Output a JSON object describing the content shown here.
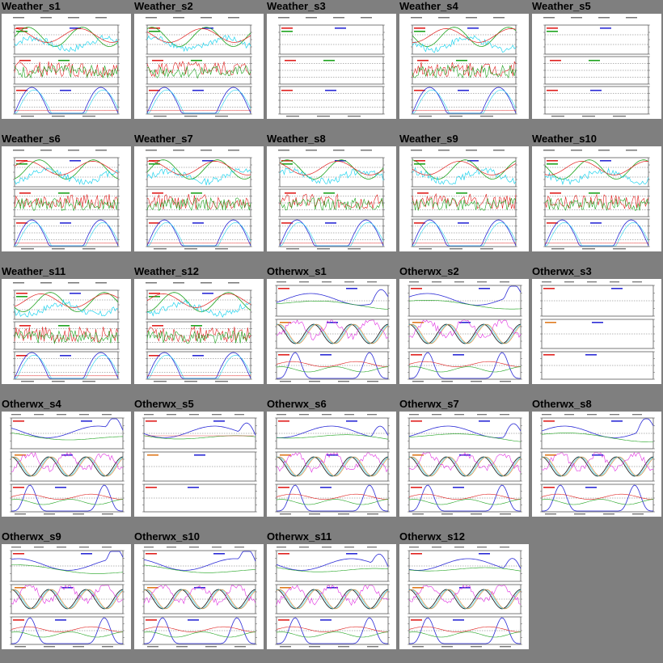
{
  "page": {
    "background": "#7f7f7f"
  },
  "colors": {
    "red": "#e0201e",
    "green": "#1ea31e",
    "blue": "#2b2bd6",
    "cyan": "#22d4ee",
    "magenta": "#e02ee0",
    "orange": "#e07a1e",
    "gray": "#555555"
  },
  "tiles": [
    {
      "title": "Weather_s1",
      "kind": "weather",
      "activity": "full"
    },
    {
      "title": "Weather_s2",
      "kind": "weather",
      "activity": "full"
    },
    {
      "title": "Weather_s3",
      "kind": "weather",
      "activity": "empty"
    },
    {
      "title": "Weather_s4",
      "kind": "weather",
      "activity": "full"
    },
    {
      "title": "Weather_s5",
      "kind": "weather",
      "activity": "empty"
    },
    {
      "title": "Weather_s6",
      "kind": "weather",
      "activity": "full"
    },
    {
      "title": "Weather_s7",
      "kind": "weather",
      "activity": "full"
    },
    {
      "title": "Weather_s8",
      "kind": "weather",
      "activity": "full"
    },
    {
      "title": "Weather_s9",
      "kind": "weather",
      "activity": "full"
    },
    {
      "title": "Weather_s10",
      "kind": "weather",
      "activity": "full"
    },
    {
      "title": "Weather_s11",
      "kind": "weather",
      "activity": "full"
    },
    {
      "title": "Weather_s12",
      "kind": "weather",
      "activity": "full"
    },
    {
      "title": "Otherwx_s1",
      "kind": "otherwx",
      "activity": "full"
    },
    {
      "title": "Otherwx_s2",
      "kind": "otherwx",
      "activity": "full"
    },
    {
      "title": "Otherwx_s3",
      "kind": "otherwx",
      "activity": "empty"
    },
    {
      "title": "Otherwx_s4",
      "kind": "otherwx",
      "activity": "full"
    },
    {
      "title": "Otherwx_s5",
      "kind": "otherwx",
      "activity": "partial"
    },
    {
      "title": "Otherwx_s6",
      "kind": "otherwx",
      "activity": "full"
    },
    {
      "title": "Otherwx_s7",
      "kind": "otherwx",
      "activity": "full"
    },
    {
      "title": "Otherwx_s8",
      "kind": "otherwx",
      "activity": "full"
    },
    {
      "title": "Otherwx_s9",
      "kind": "otherwx",
      "activity": "full"
    },
    {
      "title": "Otherwx_s10",
      "kind": "otherwx",
      "activity": "full"
    },
    {
      "title": "Otherwx_s11",
      "kind": "otherwx",
      "activity": "full"
    },
    {
      "title": "Otherwx_s12",
      "kind": "otherwx",
      "activity": "full"
    }
  ]
}
